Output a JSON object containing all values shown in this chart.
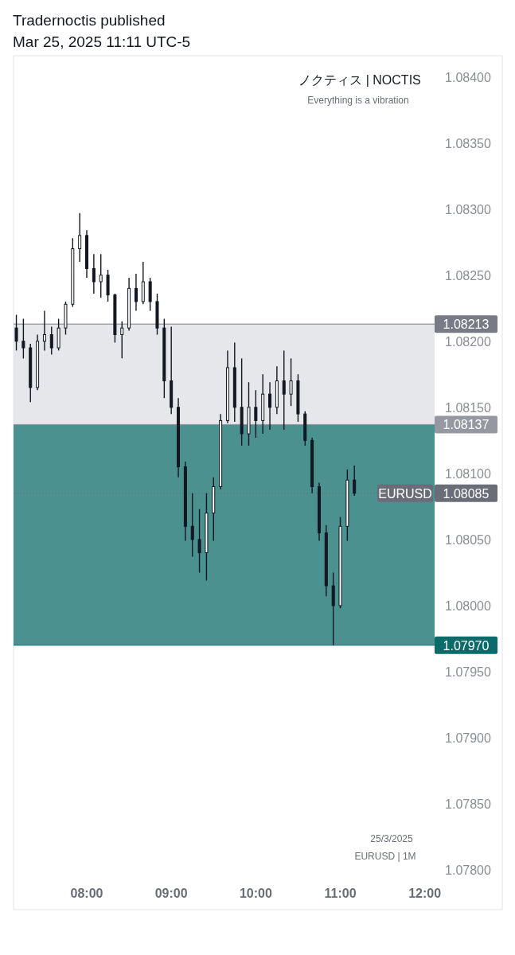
{
  "chart_data": {
    "type": "candlestick",
    "title": "Tradernoctis published",
    "subtitle": "Mar 25, 2025 11:11 UTC-5",
    "annotations": [
      "ノクティス | NOCTIS",
      "Everything is a vibration",
      "25/3/2025",
      "EURUSD | 1M",
      {
        "text": "EURUSD",
        "y": 1.08085
      }
    ],
    "x": [
      "2025-03-25T07:10",
      "2025-03-25T07:15",
      "2025-03-25T07:20",
      "2025-03-25T07:25",
      "2025-03-25T07:30",
      "2025-03-25T07:35",
      "2025-03-25T07:40",
      "2025-03-25T07:45",
      "2025-03-25T07:50",
      "2025-03-25T07:55",
      "2025-03-25T08:00",
      "2025-03-25T08:05",
      "2025-03-25T08:10",
      "2025-03-25T08:15",
      "2025-03-25T08:20",
      "2025-03-25T08:25",
      "2025-03-25T08:30",
      "2025-03-25T08:35",
      "2025-03-25T08:40",
      "2025-03-25T08:45",
      "2025-03-25T08:50",
      "2025-03-25T08:55",
      "2025-03-25T09:00",
      "2025-03-25T09:05",
      "2025-03-25T09:10",
      "2025-03-25T09:15",
      "2025-03-25T09:20",
      "2025-03-25T09:25",
      "2025-03-25T09:30",
      "2025-03-25T09:35",
      "2025-03-25T09:40",
      "2025-03-25T09:45",
      "2025-03-25T09:50",
      "2025-03-25T09:55",
      "2025-03-25T10:00",
      "2025-03-25T10:05",
      "2025-03-25T10:10",
      "2025-03-25T10:15",
      "2025-03-25T10:20",
      "2025-03-25T10:25",
      "2025-03-25T10:30",
      "2025-03-25T10:35",
      "2025-03-25T10:40",
      "2025-03-25T10:45",
      "2025-03-25T10:50",
      "2025-03-25T10:55",
      "2025-03-25T11:00",
      "2025-03-25T11:05",
      "2025-03-25T11:10"
    ],
    "ohlc": [
      [
        1.0821,
        1.0822,
        1.08193,
        1.082
      ],
      [
        1.082,
        1.08217,
        1.08187,
        1.08195
      ],
      [
        1.08195,
        1.08198,
        1.08154,
        1.08165
      ],
      [
        1.08165,
        1.08205,
        1.08163,
        1.082
      ],
      [
        1.082,
        1.08223,
        1.08193,
        1.08205
      ],
      [
        1.08205,
        1.08211,
        1.0819,
        1.08195
      ],
      [
        1.08195,
        1.08217,
        1.08193,
        1.0821
      ],
      [
        1.0821,
        1.0823,
        1.08205,
        1.08228
      ],
      [
        1.08228,
        1.08278,
        1.08226,
        1.0827
      ],
      [
        1.0827,
        1.08297,
        1.0826,
        1.0828
      ],
      [
        1.0828,
        1.08284,
        1.08248,
        1.08255
      ],
      [
        1.08255,
        1.08266,
        1.08236,
        1.08245
      ],
      [
        1.08245,
        1.08266,
        1.08233,
        1.0825
      ],
      [
        1.0825,
        1.08254,
        1.0823,
        1.08235
      ],
      [
        1.08235,
        1.08236,
        1.08199,
        1.08205
      ],
      [
        1.08205,
        1.08215,
        1.08187,
        1.0821
      ],
      [
        1.0821,
        1.08248,
        1.08208,
        1.0824
      ],
      [
        1.0824,
        1.08251,
        1.08223,
        1.0823
      ],
      [
        1.0823,
        1.0826,
        1.08228,
        1.08245
      ],
      [
        1.08245,
        1.08248,
        1.08223,
        1.0823
      ],
      [
        1.0823,
        1.08236,
        1.08205,
        1.0821
      ],
      [
        1.0821,
        1.08217,
        1.08157,
        1.0817
      ],
      [
        1.0817,
        1.08211,
        1.08145,
        1.0815
      ],
      [
        1.0815,
        1.08157,
        1.08097,
        1.08105
      ],
      [
        1.08105,
        1.08109,
        1.08049,
        1.0806
      ],
      [
        1.0806,
        1.08085,
        1.08037,
        1.0805
      ],
      [
        1.0805,
        1.08073,
        1.08025,
        1.0804
      ],
      [
        1.0804,
        1.08085,
        1.08019,
        1.0807
      ],
      [
        1.0807,
        1.08097,
        1.08049,
        1.0809
      ],
      [
        1.0809,
        1.08145,
        1.08088,
        1.0814
      ],
      [
        1.0814,
        1.08193,
        1.08138,
        1.0818
      ],
      [
        1.0818,
        1.08199,
        1.08139,
        1.0815
      ],
      [
        1.0815,
        1.08187,
        1.08121,
        1.0813
      ],
      [
        1.0813,
        1.08169,
        1.08121,
        1.0815
      ],
      [
        1.0815,
        1.08163,
        1.08127,
        1.0814
      ],
      [
        1.0814,
        1.08175,
        1.0813,
        1.0816
      ],
      [
        1.0816,
        1.08169,
        1.08133,
        1.0815
      ],
      [
        1.0815,
        1.08181,
        1.08145,
        1.0817
      ],
      [
        1.0817,
        1.08193,
        1.08133,
        1.0816
      ],
      [
        1.0816,
        1.08187,
        1.08151,
        1.0817
      ],
      [
        1.0817,
        1.08175,
        1.08139,
        1.08145
      ],
      [
        1.08145,
        1.08147,
        1.08121,
        1.08125
      ],
      [
        1.08125,
        1.08127,
        1.08085,
        1.0809
      ],
      [
        1.0809,
        1.08093,
        1.08049,
        1.08055
      ],
      [
        1.08055,
        1.08061,
        1.08007,
        1.08015
      ],
      [
        1.08015,
        1.08025,
        1.0797,
        1.08
      ],
      [
        1.08,
        1.08067,
        1.07998,
        1.0806
      ],
      [
        1.0806,
        1.08103,
        1.08049,
        1.08095
      ],
      [
        1.08095,
        1.08106,
        1.08083,
        1.08085
      ]
    ],
    "color": "#131722",
    "xlim": [
      "2025-03-25T07:08",
      "2025-03-25T12:55"
    ],
    "xticks": [
      {
        "value": "2025-03-25T08:00",
        "label": "08:00"
      },
      {
        "value": "2025-03-25T09:00",
        "label": "09:00"
      },
      {
        "value": "2025-03-25T10:00",
        "label": "10:00"
      },
      {
        "value": "2025-03-25T11:00",
        "label": "11:00"
      },
      {
        "value": "2025-03-25T12:00",
        "label": "12:00"
      }
    ],
    "ylim": [
      1.0777,
      1.08416
    ],
    "yticks": [
      {
        "value": 1.078,
        "label": "1.07800"
      },
      {
        "value": 1.0785,
        "label": "1.07850"
      },
      {
        "value": 1.079,
        "label": "1.07900"
      },
      {
        "value": 1.0795,
        "label": "1.07950"
      },
      {
        "value": 1.08,
        "label": "1.08000"
      },
      {
        "value": 1.0805,
        "label": "1.08050"
      },
      {
        "value": 1.081,
        "label": "1.08100"
      },
      {
        "value": 1.0815,
        "label": "1.08150"
      },
      {
        "value": 1.082,
        "label": "1.08200"
      },
      {
        "value": 1.0825,
        "label": "1.08250"
      },
      {
        "value": 1.083,
        "label": "1.08300"
      },
      {
        "value": 1.0835,
        "label": "1.08350"
      },
      {
        "value": 1.084,
        "label": "1.08400"
      }
    ],
    "bands": [
      {
        "axis": "y",
        "from": 1.08137,
        "to": 1.08213,
        "color": "#e6e7ea"
      },
      {
        "axis": "y",
        "from": 1.0797,
        "to": 1.08137,
        "color": "#4a9190"
      }
    ],
    "ref_lines": [
      {
        "axis": "y",
        "value": 1.08213,
        "label": "1.08213",
        "color": "#787b86"
      },
      {
        "axis": "y",
        "value": 1.08137,
        "label": "1.08137",
        "color": "#9598a1"
      },
      {
        "axis": "y",
        "value": 1.08085,
        "label": "1.08085",
        "color": "#6a6d78",
        "line_style": "dotted"
      },
      {
        "axis": "y",
        "value": 1.0797,
        "label": "1.07970",
        "color": "#0b6b6b"
      }
    ],
    "grid": false
  }
}
